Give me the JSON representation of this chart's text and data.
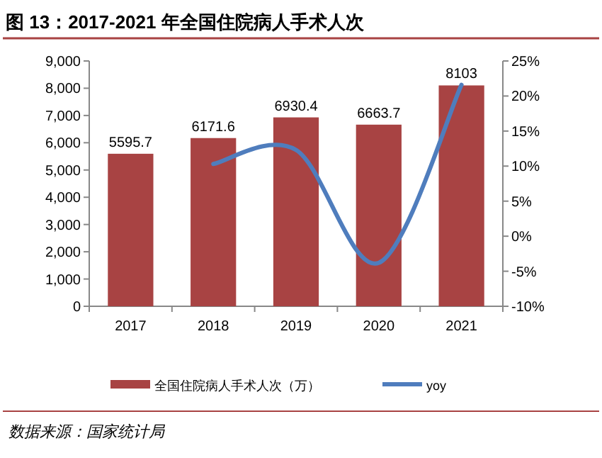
{
  "chart_data": {
    "type": "bar",
    "title": "图 13：2017-2021 年全国住院病人手术人次",
    "categories": [
      "2017",
      "2018",
      "2019",
      "2020",
      "2021"
    ],
    "series": [
      {
        "name": "全国住院病人手术人次（万）",
        "color": "#a84343",
        "values": [
          5595.7,
          6171.6,
          6930.4,
          6663.7,
          8103
        ],
        "value_labels": [
          "5595.7",
          "6171.6",
          "6930.4",
          "6663.7",
          "8103"
        ]
      },
      {
        "name": "yoy",
        "type": "line",
        "axis": "y2",
        "color": "#4f7dbd",
        "values": [
          null,
          10.3,
          12.3,
          -3.8,
          21.6
        ]
      }
    ],
    "ylim": [
      0,
      9000
    ],
    "yticks": [
      0,
      {
        "value": 1000,
        "label": "1,000"
      },
      {
        "value": 2000,
        "label": "2,000"
      },
      {
        "value": 3000,
        "label": "3,000"
      },
      {
        "value": 4000,
        "label": "4,000"
      },
      {
        "value": 5000,
        "label": "5,000"
      },
      {
        "value": 6000,
        "label": "6,000"
      },
      {
        "value": 7000,
        "label": "7,000"
      },
      {
        "value": 8000,
        "label": "8,000"
      },
      {
        "value": 9000,
        "label": "9,000"
      }
    ],
    "y2lim": [
      -10,
      25
    ],
    "y2ticks": [
      {
        "value": -10,
        "label": "-10%"
      },
      {
        "value": -5,
        "label": "-5%"
      },
      {
        "value": 0,
        "label": "0%"
      },
      {
        "value": 5,
        "label": "5%"
      },
      {
        "value": 10,
        "label": "10%"
      },
      {
        "value": 15,
        "label": "15%"
      },
      {
        "value": 20,
        "label": "20%"
      },
      {
        "value": 25,
        "label": "25%"
      }
    ],
    "legend": "bottom",
    "grid": false,
    "annotations": [
      "数据来源：国家统计局"
    ]
  }
}
